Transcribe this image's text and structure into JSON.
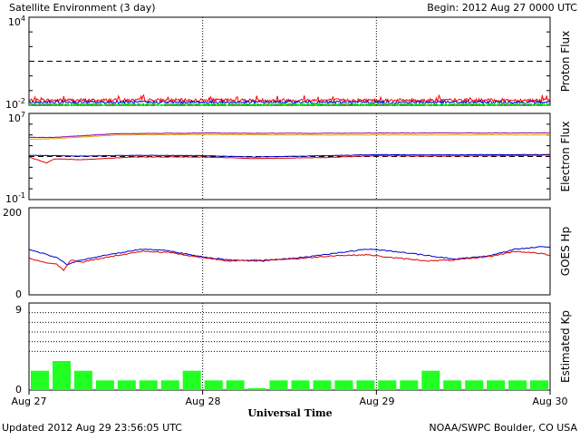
{
  "header": {
    "title": "Satellite Environment (3 day)",
    "begin": "Begin:  2012 Aug 27 0000 UTC"
  },
  "footer": {
    "updated": "Updated 2012 Aug 29 23:56:05 UTC",
    "credit": "NOAA/SWPC Boulder, CO USA",
    "xlabel": "Universal Time"
  },
  "x_ticks": [
    "Aug 27",
    "Aug 28",
    "Aug 29",
    "Aug 30"
  ],
  "chart_data": [
    {
      "type": "line",
      "name": "proton-flux",
      "ylabel": "Proton Flux",
      "yscale": "log",
      "ylim": [
        0.01,
        10000
      ],
      "y_tick_labels": {
        "top": "10^4",
        "bottom": "10^-2"
      },
      "reference_line": 10,
      "x_range_days": [
        0,
        3
      ],
      "series": [
        {
          "color": "#ff0000",
          "base": 0.022,
          "jitter": 0.22,
          "spikes": true
        },
        {
          "color": "#0000ff",
          "base": 0.016,
          "jitter": 0.2,
          "spikes": false
        },
        {
          "color": "#00ff00",
          "base": 0.012,
          "jitter": 0.18,
          "spikes": false
        }
      ]
    },
    {
      "type": "line",
      "name": "electron-flux",
      "ylabel": "Electron Flux",
      "yscale": "log",
      "ylim": [
        0.1,
        10000000
      ],
      "y_tick_labels": {
        "top": "10^7",
        "bottom": "10^-1"
      },
      "reference_line": 1000,
      "series": [
        {
          "color": "#8800aa",
          "points": [
            [
              0,
              60000
            ],
            [
              0.15,
              60000
            ],
            [
              0.5,
              130000
            ],
            [
              1,
              150000
            ],
            [
              1.5,
              140000
            ],
            [
              2,
              150000
            ],
            [
              2.5,
              150000
            ],
            [
              3,
              150000
            ]
          ]
        },
        {
          "color": "#e8a000",
          "points": [
            [
              0,
              40000
            ],
            [
              0.15,
              45000
            ],
            [
              0.5,
              100000
            ],
            [
              1,
              110000
            ],
            [
              1.5,
              100000
            ],
            [
              2,
              100000
            ],
            [
              2.5,
              100000
            ],
            [
              3,
              100000
            ]
          ]
        },
        {
          "color": "#0000cc",
          "points": [
            [
              0,
              1300
            ],
            [
              0.3,
              1100
            ],
            [
              0.6,
              1300
            ],
            [
              1,
              1200
            ],
            [
              1.3,
              900
            ],
            [
              1.7,
              1200
            ],
            [
              2,
              1500
            ],
            [
              2.3,
              1400
            ],
            [
              2.7,
              1500
            ],
            [
              3,
              1500
            ]
          ]
        },
        {
          "color": "#dd0000",
          "points": [
            [
              0,
              900
            ],
            [
              0.1,
              250
            ],
            [
              0.15,
              600
            ],
            [
              0.3,
              500
            ],
            [
              0.6,
              900
            ],
            [
              1,
              900
            ],
            [
              1.3,
              650
            ],
            [
              1.7,
              800
            ],
            [
              2,
              1200
            ],
            [
              2.3,
              1100
            ],
            [
              2.7,
              1200
            ],
            [
              3,
              1300
            ]
          ]
        }
      ]
    },
    {
      "type": "line",
      "name": "goes-hp",
      "ylabel": "GOES Hp",
      "yscale": "linear",
      "ylim": [
        0,
        200
      ],
      "y_ticks": [
        0,
        200
      ],
      "series": [
        {
          "color": "#0000cc",
          "points": [
            [
              0,
              105
            ],
            [
              0.08,
              95
            ],
            [
              0.16,
              85
            ],
            [
              0.22,
              70
            ],
            [
              0.3,
              80
            ],
            [
              0.5,
              95
            ],
            [
              0.65,
              105
            ],
            [
              0.8,
              102
            ],
            [
              0.95,
              90
            ],
            [
              1.15,
              80
            ],
            [
              1.35,
              78
            ],
            [
              1.55,
              85
            ],
            [
              1.75,
              95
            ],
            [
              1.95,
              105
            ],
            [
              2.1,
              100
            ],
            [
              2.3,
              90
            ],
            [
              2.45,
              82
            ],
            [
              2.65,
              90
            ],
            [
              2.8,
              105
            ],
            [
              2.95,
              110
            ],
            [
              3,
              108
            ]
          ]
        },
        {
          "color": "#dd0000",
          "points": [
            [
              0,
              85
            ],
            [
              0.08,
              75
            ],
            [
              0.16,
              70
            ],
            [
              0.2,
              57
            ],
            [
              0.24,
              80
            ],
            [
              0.3,
              75
            ],
            [
              0.5,
              90
            ],
            [
              0.65,
              100
            ],
            [
              0.8,
              98
            ],
            [
              0.95,
              88
            ],
            [
              1.15,
              78
            ],
            [
              1.35,
              80
            ],
            [
              1.55,
              83
            ],
            [
              1.75,
              90
            ],
            [
              1.95,
              92
            ],
            [
              2.1,
              85
            ],
            [
              2.3,
              78
            ],
            [
              2.45,
              80
            ],
            [
              2.65,
              88
            ],
            [
              2.8,
              100
            ],
            [
              2.95,
              95
            ],
            [
              3,
              90
            ]
          ]
        }
      ]
    },
    {
      "type": "bar",
      "name": "estimated-kp",
      "ylabel": "Estimated Kp",
      "ylim": [
        0,
        9
      ],
      "y_ticks": [
        0,
        9
      ],
      "gridlines": [
        4,
        5,
        6,
        7,
        8,
        9
      ],
      "bar_color": "#22ff22",
      "values": [
        2,
        3,
        2,
        1,
        1,
        1,
        1,
        2,
        1,
        1,
        0.2,
        1,
        1,
        1,
        1,
        1,
        1,
        1,
        2,
        1,
        1,
        1,
        1,
        1
      ]
    }
  ]
}
